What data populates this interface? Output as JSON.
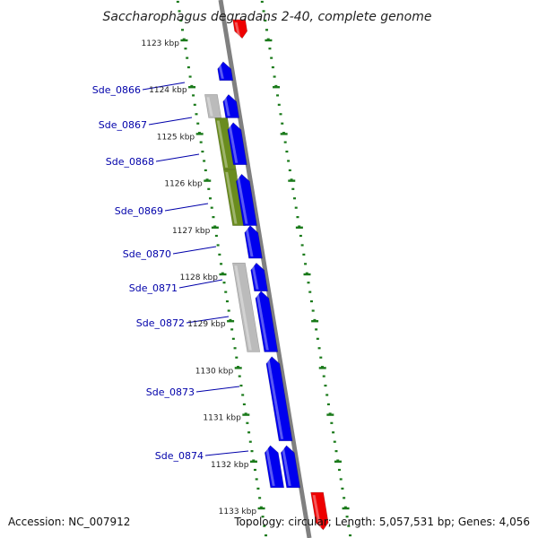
{
  "title": "Saccharophagus degradans 2-40, complete genome",
  "footer": {
    "accession": "Accession: NC_007912",
    "summary": "Topology: circular; Length: 5,057,531 bp; Genes: 4,056"
  },
  "colors": {
    "forward_cds": "#0000ee",
    "reverse_cds": "#ee0000",
    "pseudogene": "#bbbbbb",
    "cog_feature": "#6a8c1e",
    "ruler_ticks": "#1a7a1a",
    "backbone": "#808080",
    "label": "#0000aa"
  },
  "kbp_labels": [
    "1123 kbp",
    "1124 kbp",
    "1125 kbp",
    "1126 kbp",
    "1127 kbp",
    "1128 kbp",
    "1129 kbp",
    "1130 kbp",
    "1131 kbp",
    "1132 kbp",
    "1133 kbp"
  ],
  "gene_labels": [
    "Sde_0866",
    "Sde_0867",
    "Sde_0868",
    "Sde_0869",
    "Sde_0870",
    "Sde_0871",
    "Sde_0872",
    "Sde_0873",
    "Sde_0874"
  ],
  "features": [
    {
      "name": "reverse-cds",
      "type": "reverse",
      "start_kbp": 1122.5,
      "end_kbp": 1122.9
    },
    {
      "name": "forward-cds",
      "type": "forward",
      "start_kbp": 1123.4,
      "end_kbp": 1123.8
    },
    {
      "name": "pseudo-feature",
      "type": "pseudo",
      "start_kbp": 1124.1,
      "end_kbp": 1124.6
    },
    {
      "name": "forward-cds",
      "type": "forward",
      "start_kbp": 1124.1,
      "end_kbp": 1124.6
    },
    {
      "name": "cog-feature",
      "type": "cog",
      "start_kbp": 1124.6,
      "end_kbp": 1125.7
    },
    {
      "name": "forward-cds",
      "type": "forward",
      "start_kbp": 1124.7,
      "end_kbp": 1125.6
    },
    {
      "name": "cog-feature",
      "type": "cog",
      "start_kbp": 1125.7,
      "end_kbp": 1126.9
    },
    {
      "name": "forward-cds",
      "type": "forward",
      "start_kbp": 1125.8,
      "end_kbp": 1126.9
    },
    {
      "name": "forward-cds",
      "type": "forward",
      "start_kbp": 1126.9,
      "end_kbp": 1127.6
    },
    {
      "name": "pseudo-feature",
      "type": "pseudo",
      "start_kbp": 1127.7,
      "end_kbp": 1129.6
    },
    {
      "name": "forward-cds",
      "type": "forward",
      "start_kbp": 1127.7,
      "end_kbp": 1128.3
    },
    {
      "name": "forward-cds",
      "type": "forward",
      "start_kbp": 1128.3,
      "end_kbp": 1129.6
    },
    {
      "name": "forward-cds",
      "type": "forward",
      "start_kbp": 1129.7,
      "end_kbp": 1131.5
    },
    {
      "name": "forward-cds",
      "type": "forward",
      "start_kbp": 1131.6,
      "end_kbp": 1132.5
    },
    {
      "name": "forward-cds",
      "type": "forward",
      "start_kbp": 1131.6,
      "end_kbp": 1132.5
    },
    {
      "name": "reverse-cds",
      "type": "reverse",
      "start_kbp": 1132.6,
      "end_kbp": 1133.4
    }
  ]
}
